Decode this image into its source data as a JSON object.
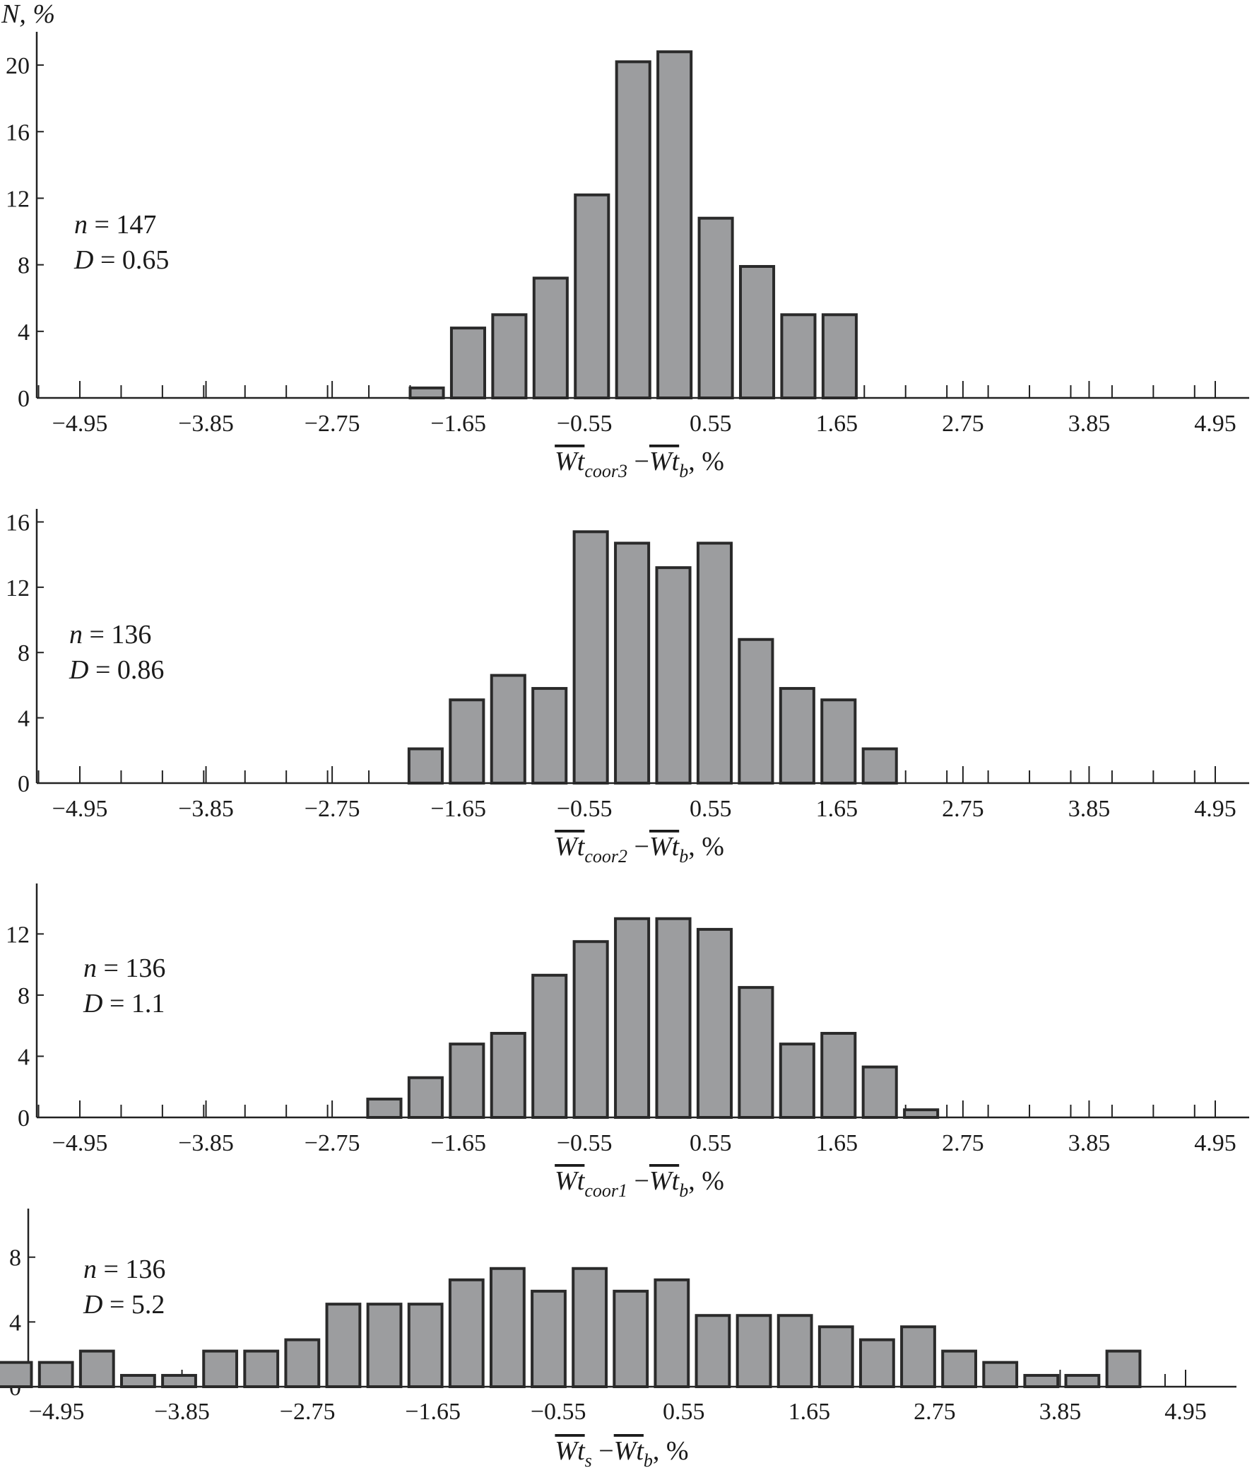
{
  "chart_data": [
    {
      "type": "bar",
      "title": "",
      "ylabel": "N, %",
      "xlabel_parts": {
        "main": "Wt",
        "sub": "coor3",
        "minus": "−",
        "main2": "Wt",
        "sub2": "b",
        "suffix": ", %"
      },
      "xticks": [
        "−4.95",
        "−3.85",
        "−2.75",
        "−1.65",
        "−0.55",
        "0.55",
        "1.65",
        "2.75",
        "3.85",
        "4.95"
      ],
      "xlim": [
        -5.5,
        5.5
      ],
      "yticks": [
        "0",
        "4",
        "8",
        "12",
        "16",
        "20"
      ],
      "ylim": [
        0,
        22
      ],
      "annotation": {
        "n": "n = 147",
        "D": "D = 0.65"
      },
      "bars": [
        {
          "x": -1.925,
          "value": 0.6
        },
        {
          "x": -1.565,
          "value": 4.2
        },
        {
          "x": -1.205,
          "value": 5.0
        },
        {
          "x": -0.845,
          "value": 7.2
        },
        {
          "x": -0.485,
          "value": 12.2
        },
        {
          "x": -0.125,
          "value": 20.2
        },
        {
          "x": 0.235,
          "value": 20.8
        },
        {
          "x": 0.595,
          "value": 10.8
        },
        {
          "x": 0.955,
          "value": 7.9
        },
        {
          "x": 1.315,
          "value": 5.0
        },
        {
          "x": 1.675,
          "value": 5.0
        }
      ],
      "bar_width": 0.29
    },
    {
      "type": "bar",
      "title": "",
      "ylabel": "",
      "xlabel_parts": {
        "main": "Wt",
        "sub": "coor2",
        "minus": "−",
        "main2": "Wt",
        "sub2": "b",
        "suffix": ", %"
      },
      "xticks": [
        "−4.95",
        "−3.85",
        "−2.75",
        "−1.65",
        "−0.55",
        "0.55",
        "1.65",
        "2.75",
        "3.85",
        "4.95"
      ],
      "xlim": [
        -5.5,
        5.5
      ],
      "yticks": [
        "0",
        "4",
        "8",
        "12",
        "16"
      ],
      "ylim": [
        0,
        16.8
      ],
      "annotation": {
        "n": "n = 136",
        "D": "D = 0.86"
      },
      "bars": [
        {
          "x": -1.935,
          "value": 2.1
        },
        {
          "x": -1.575,
          "value": 5.1
        },
        {
          "x": -1.215,
          "value": 6.6
        },
        {
          "x": -0.855,
          "value": 5.8
        },
        {
          "x": -0.495,
          "value": 15.4
        },
        {
          "x": -0.135,
          "value": 14.7
        },
        {
          "x": 0.225,
          "value": 13.2
        },
        {
          "x": 0.585,
          "value": 14.7
        },
        {
          "x": 0.945,
          "value": 8.8
        },
        {
          "x": 1.305,
          "value": 5.8
        },
        {
          "x": 1.665,
          "value": 5.1
        },
        {
          "x": 2.025,
          "value": 2.1
        }
      ],
      "bar_width": 0.29
    },
    {
      "type": "bar",
      "title": "",
      "ylabel": "",
      "xlabel_parts": {
        "main": "Wt",
        "sub": "coor1",
        "minus": "−",
        "main2": "Wt",
        "sub2": "b",
        "suffix": ", %"
      },
      "xticks": [
        "−4.95",
        "−3.85",
        "−2.75",
        "−1.65",
        "−0.55",
        "0.55",
        "1.65",
        "2.75",
        "3.85",
        "4.95"
      ],
      "xlim": [
        -5.5,
        5.5
      ],
      "yticks": [
        "0",
        "4",
        "8",
        "12"
      ],
      "ylim": [
        0,
        15.3
      ],
      "annotation": {
        "n": "n = 136",
        "D": "D = 1.1"
      },
      "bars": [
        {
          "x": -2.295,
          "value": 1.2
        },
        {
          "x": -1.935,
          "value": 2.6
        },
        {
          "x": -1.575,
          "value": 4.8
        },
        {
          "x": -1.215,
          "value": 5.5
        },
        {
          "x": -0.855,
          "value": 9.3
        },
        {
          "x": -0.495,
          "value": 11.5
        },
        {
          "x": -0.135,
          "value": 13.0
        },
        {
          "x": 0.225,
          "value": 13.0
        },
        {
          "x": 0.585,
          "value": 12.3
        },
        {
          "x": 0.945,
          "value": 8.5
        },
        {
          "x": 1.305,
          "value": 4.8
        },
        {
          "x": 1.665,
          "value": 5.5
        },
        {
          "x": 2.025,
          "value": 3.3
        },
        {
          "x": 2.385,
          "value": 0.5
        }
      ],
      "bar_width": 0.29
    },
    {
      "type": "bar",
      "title": "",
      "ylabel": "",
      "xlabel_parts": {
        "main": "Wt",
        "sub": "s",
        "minus": "−",
        "main2": "Wt",
        "sub2": "b",
        "suffix": ", %"
      },
      "xticks": [
        "−4.95",
        "−3.85",
        "−2.75",
        "−1.65",
        "−0.55",
        "0.55",
        "1.65",
        "2.75",
        "3.85",
        "4.95"
      ],
      "xlim": [
        -5.5,
        5.5
      ],
      "yticks": [
        "0",
        "4",
        "8"
      ],
      "ylim": [
        0,
        11.0
      ],
      "annotation": {
        "n": "n = 136",
        "D": "D = 5.2"
      },
      "bars": [
        {
          "x": -5.315,
          "value": 1.5
        },
        {
          "x": -4.955,
          "value": 1.5
        },
        {
          "x": -4.595,
          "value": 2.2
        },
        {
          "x": -4.235,
          "value": 0.7
        },
        {
          "x": -3.875,
          "value": 0.7
        },
        {
          "x": -3.515,
          "value": 2.2
        },
        {
          "x": -3.155,
          "value": 2.2
        },
        {
          "x": -2.795,
          "value": 2.9
        },
        {
          "x": -2.435,
          "value": 5.1
        },
        {
          "x": -2.075,
          "value": 5.1
        },
        {
          "x": -1.715,
          "value": 5.1
        },
        {
          "x": -1.355,
          "value": 6.6
        },
        {
          "x": -0.995,
          "value": 7.3
        },
        {
          "x": -0.635,
          "value": 5.9
        },
        {
          "x": -0.275,
          "value": 7.3
        },
        {
          "x": 0.085,
          "value": 5.9
        },
        {
          "x": 0.445,
          "value": 6.6
        },
        {
          "x": 0.805,
          "value": 4.4
        },
        {
          "x": 1.165,
          "value": 4.4
        },
        {
          "x": 1.525,
          "value": 4.4
        },
        {
          "x": 1.885,
          "value": 3.7
        },
        {
          "x": 2.245,
          "value": 2.9
        },
        {
          "x": 2.605,
          "value": 3.7
        },
        {
          "x": 2.965,
          "value": 2.2
        },
        {
          "x": 3.325,
          "value": 1.5
        },
        {
          "x": 3.685,
          "value": 0.7
        },
        {
          "x": 4.045,
          "value": 0.7
        },
        {
          "x": 4.405,
          "value": 2.2
        }
      ],
      "bar_width": 0.29
    }
  ]
}
